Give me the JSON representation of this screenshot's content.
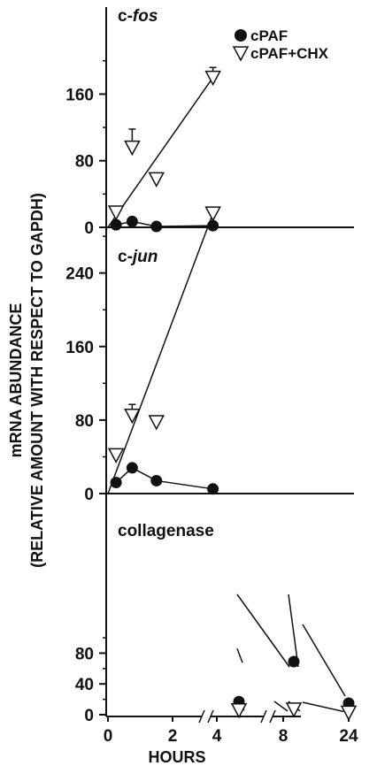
{
  "chart_data": {
    "type": "line",
    "ylabel_line1": "mRNA ABUNDANCE",
    "ylabel_line2": "(RELATIVE AMOUNT WITH RESPECT TO GAPDH)",
    "xlabel": "HOURS",
    "legend": [
      {
        "name": "cPAF",
        "marker": "filled-circle"
      },
      {
        "name": "cPAF+CHX",
        "marker": "open-triangle"
      }
    ],
    "x_ticks": [
      "0",
      "2",
      "4",
      "8",
      "24"
    ],
    "legend_position": "top-right",
    "panels": [
      {
        "id": "cfos",
        "label_prefix": "c-",
        "label_italic": "fos",
        "y_ticks": [
          "0",
          "80",
          "160"
        ],
        "ylim": [
          0,
          200
        ],
        "series": [
          {
            "name": "cPAF",
            "points": [
              {
                "x": 0.25,
                "y": 3
              },
              {
                "x": 0.75,
                "y": 7
              },
              {
                "x": 1.5,
                "y": 1
              },
              {
                "x": 3.25,
                "y": 2
              }
            ]
          },
          {
            "name": "cPAF+CHX",
            "points": [
              {
                "x": 0.25,
                "y": 18
              },
              {
                "x": 0.75,
                "y": 96,
                "err": 22
              },
              {
                "x": 1.5,
                "y": 58
              },
              {
                "x": 3.25,
                "y": 180,
                "err": 12
              }
            ]
          }
        ]
      },
      {
        "id": "cjun",
        "label_prefix": "c-",
        "label_italic": "jun",
        "y_ticks": [
          "0",
          "80",
          "160",
          "240"
        ],
        "ylim": [
          0,
          320
        ],
        "series": [
          {
            "name": "cPAF",
            "points": [
              {
                "x": 0.25,
                "y": 12
              },
              {
                "x": 0.75,
                "y": 28
              },
              {
                "x": 1.5,
                "y": 14
              },
              {
                "x": 3.25,
                "y": 5
              }
            ]
          },
          {
            "name": "cPAF+CHX",
            "points": [
              {
                "x": 0.25,
                "y": 42
              },
              {
                "x": 0.75,
                "y": 85,
                "err": 12
              },
              {
                "x": 1.5,
                "y": 78
              },
              {
                "x": 3.25,
                "y": 305
              }
            ]
          }
        ]
      },
      {
        "id": "collagenase",
        "label": "collagenase",
        "y_ticks": [
          "0",
          "40",
          "80"
        ],
        "ylim": [
          0,
          85
        ],
        "series": [
          {
            "name": "cPAF",
            "points": [
              {
                "x": "4",
                "y": 17
              },
              {
                "x": "8",
                "y": 69
              },
              {
                "x": "24",
                "y": 15,
                "err": 5
              }
            ]
          },
          {
            "name": "cPAF+CHX",
            "points": [
              {
                "x": "4",
                "y": 6
              },
              {
                "x": "8",
                "y": 7
              },
              {
                "x": "24",
                "y": 3
              }
            ]
          }
        ]
      }
    ]
  }
}
